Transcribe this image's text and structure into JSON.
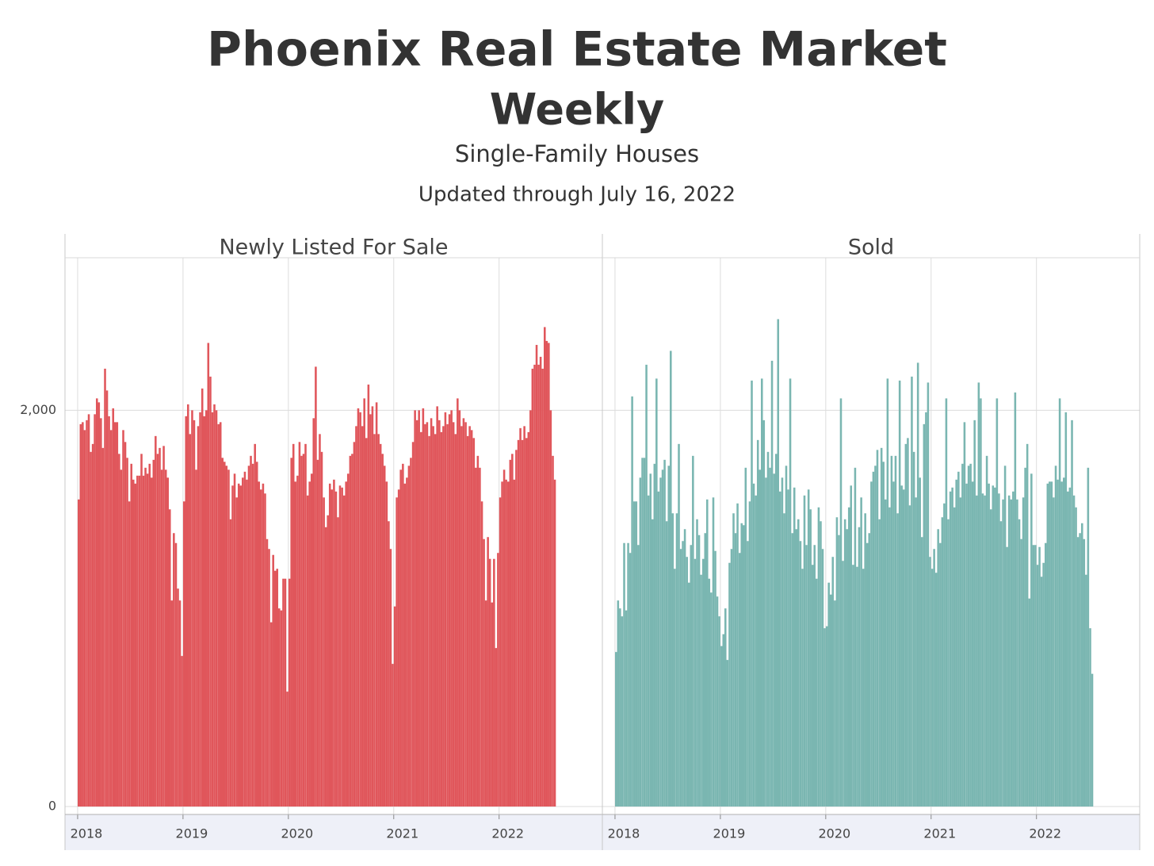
{
  "chart_data": {
    "type": "bar",
    "title": "Phoenix Real Estate Market",
    "subtitle": [
      "Weekly",
      "Single-Family Houses",
      "Updated through July 16, 2022"
    ],
    "x": [
      2018.01,
      2018.029,
      2018.048,
      2018.067,
      2018.087,
      2018.106,
      2018.125,
      2018.144,
      2018.163,
      2018.183,
      2018.202,
      2018.221,
      2018.24,
      2018.26,
      2018.279,
      2018.298,
      2018.317,
      2018.337,
      2018.356,
      2018.375,
      2018.394,
      2018.413,
      2018.433,
      2018.452,
      2018.471,
      2018.49,
      2018.51,
      2018.529,
      2018.548,
      2018.567,
      2018.587,
      2018.606,
      2018.625,
      2018.644,
      2018.663,
      2018.683,
      2018.702,
      2018.721,
      2018.74,
      2018.76,
      2018.779,
      2018.798,
      2018.817,
      2018.837,
      2018.856,
      2018.875,
      2018.894,
      2018.913,
      2018.933,
      2018.952,
      2018.971,
      2018.99,
      2019.01,
      2019.029,
      2019.048,
      2019.067,
      2019.087,
      2019.106,
      2019.125,
      2019.144,
      2019.163,
      2019.183,
      2019.202,
      2019.221,
      2019.24,
      2019.26,
      2019.279,
      2019.298,
      2019.317,
      2019.337,
      2019.356,
      2019.375,
      2019.394,
      2019.413,
      2019.433,
      2019.452,
      2019.471,
      2019.49,
      2019.51,
      2019.529,
      2019.548,
      2019.567,
      2019.587,
      2019.606,
      2019.625,
      2019.644,
      2019.663,
      2019.683,
      2019.702,
      2019.721,
      2019.74,
      2019.76,
      2019.779,
      2019.798,
      2019.817,
      2019.837,
      2019.856,
      2019.875,
      2019.894,
      2019.913,
      2019.933,
      2019.952,
      2019.971,
      2019.99,
      2020.01,
      2020.029,
      2020.048,
      2020.067,
      2020.087,
      2020.106,
      2020.125,
      2020.144,
      2020.163,
      2020.183,
      2020.202,
      2020.221,
      2020.24,
      2020.26,
      2020.279,
      2020.298,
      2020.317,
      2020.337,
      2020.356,
      2020.375,
      2020.394,
      2020.413,
      2020.433,
      2020.452,
      2020.471,
      2020.49,
      2020.51,
      2020.529,
      2020.548,
      2020.567,
      2020.587,
      2020.606,
      2020.625,
      2020.644,
      2020.663,
      2020.683,
      2020.702,
      2020.721,
      2020.74,
      2020.76,
      2020.779,
      2020.798,
      2020.817,
      2020.837,
      2020.856,
      2020.875,
      2020.894,
      2020.913,
      2020.933,
      2020.952,
      2020.971,
      2020.99,
      2021.01,
      2021.029,
      2021.048,
      2021.067,
      2021.087,
      2021.106,
      2021.125,
      2021.144,
      2021.163,
      2021.183,
      2021.202,
      2021.221,
      2021.24,
      2021.26,
      2021.279,
      2021.298,
      2021.317,
      2021.337,
      2021.356,
      2021.375,
      2021.394,
      2021.413,
      2021.433,
      2021.452,
      2021.471,
      2021.49,
      2021.51,
      2021.529,
      2021.548,
      2021.567,
      2021.587,
      2021.606,
      2021.625,
      2021.644,
      2021.663,
      2021.683,
      2021.702,
      2021.721,
      2021.74,
      2021.76,
      2021.779,
      2021.798,
      2021.817,
      2021.837,
      2021.856,
      2021.875,
      2021.894,
      2021.913,
      2021.933,
      2021.952,
      2021.971,
      2021.99,
      2022.01,
      2022.029,
      2022.048,
      2022.067,
      2022.087,
      2022.106,
      2022.125,
      2022.144,
      2022.163,
      2022.183,
      2022.202,
      2022.221,
      2022.24,
      2022.26,
      2022.279,
      2022.298,
      2022.317,
      2022.337,
      2022.356,
      2022.375,
      2022.394,
      2022.413,
      2022.433,
      2022.452,
      2022.471,
      2022.49,
      2022.51,
      2022.529
    ],
    "series": [
      {
        "name": "Newly Listed For Sale",
        "color": "#e0565b",
        "values": [
          1550,
          1930,
          1940,
          1900,
          1950,
          1980,
          1790,
          1830,
          1980,
          2060,
          2040,
          1960,
          1810,
          2210,
          2100,
          1970,
          1900,
          2010,
          1940,
          1940,
          1780,
          1700,
          1900,
          1840,
          1760,
          1540,
          1730,
          1650,
          1630,
          1670,
          1670,
          1780,
          1670,
          1710,
          1680,
          1730,
          1660,
          1750,
          1870,
          1780,
          1810,
          1700,
          1820,
          1700,
          1660,
          1500,
          1040,
          1380,
          1330,
          1100,
          1040,
          760,
          1540,
          1970,
          2030,
          1880,
          2000,
          1950,
          1700,
          1920,
          1990,
          2110,
          1970,
          2000,
          2340,
          2170,
          1990,
          2030,
          2000,
          1930,
          1940,
          1760,
          1740,
          1720,
          1700,
          1450,
          1620,
          1680,
          1560,
          1630,
          1620,
          1660,
          1690,
          1650,
          1720,
          1770,
          1730,
          1830,
          1740,
          1640,
          1600,
          1630,
          1580,
          1350,
          1300,
          930,
          1270,
          1190,
          1200,
          1000,
          990,
          1150,
          1150,
          580,
          1150,
          1760,
          1830,
          1640,
          1670,
          1840,
          1770,
          1780,
          1830,
          1570,
          1640,
          1680,
          1960,
          2220,
          1750,
          1880,
          1790,
          1560,
          1410,
          1470,
          1630,
          1600,
          1650,
          1590,
          1460,
          1620,
          1610,
          1570,
          1640,
          1680,
          1770,
          1780,
          1840,
          1920,
          2010,
          1990,
          1920,
          2060,
          1860,
          2130,
          1980,
          2020,
          1880,
          2040,
          1880,
          1830,
          1780,
          1720,
          1640,
          1440,
          1300,
          720,
          1010,
          1560,
          1600,
          1700,
          1730,
          1630,
          1660,
          1720,
          1760,
          1840,
          2000,
          1950,
          2000,
          1890,
          2010,
          1930,
          1940,
          1870,
          1960,
          1920,
          1880,
          2020,
          1950,
          1890,
          1920,
          1990,
          1930,
          1980,
          2000,
          1940,
          1880,
          2060,
          2000,
          1920,
          1960,
          1940,
          1870,
          1920,
          1900,
          1860,
          1710,
          1770,
          1710,
          1540,
          1350,
          1040,
          1360,
          1250,
          1030,
          1250,
          800,
          1280,
          1560,
          1640,
          1700,
          1650,
          1640,
          1750,
          1780,
          1650,
          1800,
          1850,
          1910,
          1850,
          1920,
          1860,
          1890,
          2000,
          2210,
          2230,
          2330,
          2230,
          2270,
          2210,
          2420,
          2350,
          2340,
          2000,
          1770,
          1650
        ]
      },
      {
        "name": "Sold",
        "color": "#7ab6b1",
        "values": [
          780,
          1040,
          1000,
          960,
          1330,
          990,
          1330,
          1280,
          2070,
          1540,
          1540,
          1320,
          1660,
          1760,
          1760,
          2230,
          1570,
          1680,
          1450,
          1730,
          2160,
          1590,
          1660,
          1700,
          1750,
          1440,
          1720,
          2300,
          1480,
          1200,
          1480,
          1830,
          1300,
          1340,
          1400,
          1260,
          1130,
          1320,
          1770,
          1250,
          1450,
          1370,
          1170,
          1250,
          1380,
          1550,
          1150,
          1080,
          1560,
          1290,
          1060,
          960,
          810,
          870,
          1000,
          740,
          1230,
          1300,
          1480,
          1380,
          1530,
          1280,
          1430,
          1420,
          1710,
          1340,
          1540,
          2150,
          1630,
          1570,
          1850,
          1700,
          2160,
          1950,
          1660,
          1790,
          1710,
          2250,
          1680,
          1780,
          2460,
          1590,
          1660,
          1480,
          1720,
          1600,
          2160,
          1380,
          1610,
          1400,
          1450,
          1340,
          1200,
          1570,
          1320,
          1600,
          1500,
          1220,
          1320,
          1150,
          1510,
          1440,
          1300,
          900,
          910,
          1130,
          1070,
          1260,
          1040,
          1460,
          1370,
          2060,
          1240,
          1450,
          1400,
          1510,
          1620,
          1220,
          1710,
          1210,
          1410,
          1560,
          1200,
          1480,
          1330,
          1380,
          1640,
          1690,
          1720,
          1800,
          1450,
          1810,
          1740,
          1550,
          2160,
          1510,
          1770,
          1640,
          1770,
          1480,
          2150,
          1620,
          1600,
          1830,
          1860,
          1520,
          2170,
          1790,
          1560,
          2240,
          1660,
          1360,
          1930,
          1990,
          2140,
          1260,
          1200,
          1300,
          1180,
          1400,
          1330,
          1460,
          1530,
          2060,
          1450,
          1590,
          1610,
          1510,
          1650,
          1690,
          1560,
          1730,
          1940,
          1630,
          1720,
          1730,
          1640,
          1950,
          1570,
          2140,
          2060,
          1580,
          1570,
          1770,
          1630,
          1500,
          1620,
          1610,
          2060,
          1580,
          1440,
          1550,
          1720,
          1310,
          1570,
          1550,
          1590,
          2090,
          1550,
          1450,
          1350,
          1560,
          1710,
          1830,
          1050,
          1680,
          1320,
          1320,
          1220,
          1310,
          1160,
          1230,
          1330,
          1630,
          1640,
          1640,
          1560,
          1720,
          1650,
          2060,
          1640,
          1660,
          1990,
          1590,
          1610,
          1950,
          1570,
          1510,
          1360,
          1380,
          1430,
          1350,
          1170,
          1710,
          900,
          670
        ]
      }
    ],
    "xlim": [
      2017.88,
      2022.98
    ],
    "xticks": [
      2018,
      2019,
      2020,
      2021,
      2022
    ],
    "ylim": [
      -40,
      2770
    ],
    "yticks": [
      0,
      {
        "value": 2000,
        "label": "2,000"
      }
    ],
    "grid": true
  }
}
